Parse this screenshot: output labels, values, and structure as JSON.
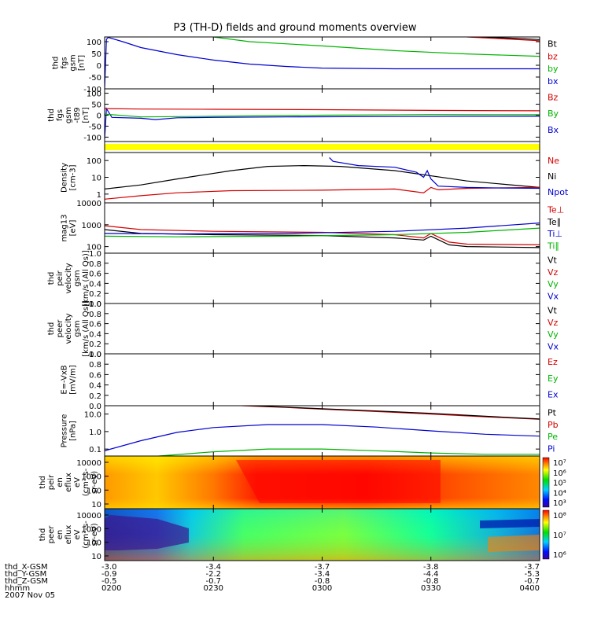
{
  "chart_data": {
    "type": "line",
    "title": "P3 (TH-D) fields and ground moments overview",
    "time_ticks": [
      "0200",
      "0230",
      "0300",
      "0330",
      "0400"
    ],
    "time_range": [
      0,
      120
    ],
    "footer": {
      "rows": [
        {
          "label": "thd_X-GSM",
          "values": [
            "-3.0",
            "-3.4",
            "-3.7",
            "-3.8",
            "-3.7"
          ]
        },
        {
          "label": "thd_Y-GSM",
          "values": [
            "-0.9",
            "-2.2",
            "-3.4",
            "-4.4",
            "-5.3"
          ]
        },
        {
          "label": "thd_Z-GSM",
          "values": [
            "-0.5",
            "-0.7",
            "-0.8",
            "-0.8",
            "-0.7"
          ]
        },
        {
          "label": "hhmm",
          "values": [
            "0200",
            "0230",
            "0300",
            "0330",
            "0400"
          ]
        }
      ],
      "date": "2007 Nov 05"
    },
    "panels": [
      {
        "id": "fgs",
        "kind": "line",
        "scale": "linear",
        "ylabel": [
          "thd",
          "fgs",
          "gsm",
          "[nT]"
        ],
        "yrange": [
          -100,
          120
        ],
        "ticks": [
          "100",
          "50",
          "0",
          "-50",
          "-100"
        ],
        "tick_values": [
          100,
          50,
          0,
          -50,
          -100
        ],
        "legend": [
          {
            "text": "Bt",
            "color": "#000000"
          },
          {
            "text": "bz",
            "color": "#d40000"
          },
          {
            "text": "by",
            "color": "#00b400"
          },
          {
            "text": "bx",
            "color": "#0000d0"
          }
        ],
        "series": [
          {
            "name": "bx",
            "color": "#0000d0",
            "x": [
              0,
              0.5,
              1,
              5,
              10,
              20,
              30,
              40,
              50,
              60,
              80,
              100,
              120
            ],
            "y": [
              -100,
              110,
              118,
              100,
              75,
              45,
              22,
              5,
              -5,
              -12,
              -15,
              -15,
              -15
            ]
          },
          {
            "name": "by",
            "color": "#00b400",
            "x": [
              30,
              40,
              60,
              80,
              100,
              120
            ],
            "y": [
              120,
              100,
              82,
              62,
              48,
              38
            ]
          },
          {
            "name": "bz",
            "color": "#d40000",
            "x": [
              100,
              110,
              120
            ],
            "y": [
              120,
              112,
              104
            ]
          },
          {
            "name": "Bt",
            "color": "#000000",
            "x": [
              104,
              112,
              120
            ],
            "y": [
              120,
              115,
              109
            ]
          }
        ]
      },
      {
        "id": "fgs_t89",
        "kind": "line",
        "scale": "linear",
        "ylabel": [
          "thd",
          "fgs",
          "gsm",
          "-t89",
          "[nT]"
        ],
        "yrange": [
          -120,
          120
        ],
        "ticks": [
          "100",
          "50",
          "0",
          "-50",
          "-100"
        ],
        "tick_values": [
          100,
          50,
          0,
          -50,
          -100
        ],
        "legend": [
          {
            "text": "Bz",
            "color": "#d40000"
          },
          {
            "text": "By",
            "color": "#00b400"
          },
          {
            "text": "Bx",
            "color": "#0000d0"
          }
        ],
        "series": [
          {
            "name": "Bx",
            "color": "#0000d0",
            "x": [
              0,
              0.5,
              2,
              10,
              14,
              20,
              30,
              50,
              80,
              100,
              120
            ],
            "y": [
              -110,
              30,
              -10,
              -14,
              -20,
              -12,
              -10,
              -8,
              -6,
              -5,
              -5
            ]
          },
          {
            "name": "By",
            "color": "#00b400",
            "x": [
              0,
              10,
              30,
              60,
              90,
              120
            ],
            "y": [
              5,
              -8,
              -5,
              0,
              3,
              2
            ]
          },
          {
            "name": "Bz",
            "color": "#d40000",
            "x": [
              0,
              10,
              30,
              60,
              90,
              120
            ],
            "y": [
              30,
              28,
              27,
              25,
              22,
              20
            ]
          }
        ]
      },
      {
        "id": "flag",
        "kind": "bar",
        "color": "#ffff00"
      },
      {
        "id": "density",
        "kind": "line",
        "scale": "log",
        "ylabel": [
          "Density",
          "[cm-3]"
        ],
        "ylabel_label": "[cm-3]",
        "yrange": [
          0.3,
          300
        ],
        "ticks": [
          "100",
          "10",
          "1"
        ],
        "tick_values": [
          100,
          10,
          1
        ],
        "legend": [
          {
            "text": "Ne",
            "color": "#d40000"
          },
          {
            "text": "Ni",
            "color": "#000000"
          },
          {
            "text": "Npot",
            "color": "#0000d0"
          }
        ],
        "series": [
          {
            "name": "Ni",
            "color": "#000000",
            "x": [
              0,
              10,
              20,
              35,
              45,
              55,
              65,
              80,
              100,
              120
            ],
            "y": [
              2,
              3.5,
              8,
              25,
              45,
              50,
              45,
              25,
              6,
              2.5
            ]
          },
          {
            "name": "Ne",
            "color": "#d40000",
            "x": [
              0,
              10,
              20,
              35,
              60,
              80,
              88,
              90,
              92,
              100,
              120
            ],
            "y": [
              0.5,
              0.8,
              1.2,
              1.6,
              1.7,
              2,
              1.2,
              2.5,
              1.8,
              2.2,
              2.5
            ]
          },
          {
            "name": "Npot",
            "color": "#0000d0",
            "x": [
              62,
              63,
              70,
              80,
              86,
              88,
              89,
              90,
              92,
              100,
              110,
              120
            ],
            "y": [
              150,
              90,
              50,
              40,
              20,
              10,
              25,
              8,
              3,
              2.5,
              2.3,
              2.2
            ]
          }
        ]
      },
      {
        "id": "temp",
        "kind": "line",
        "scale": "log",
        "ylabel": [
          "mag13",
          "[eV]"
        ],
        "yrange": [
          50,
          10000
        ],
        "ticks": [
          "10000",
          "1000",
          "100"
        ],
        "tick_values": [
          10000,
          1000,
          100
        ],
        "legend": [
          {
            "text": "Te⊥",
            "color": "#d40000"
          },
          {
            "text": "Te∥",
            "color": "#000000"
          },
          {
            "text": "Ti⊥",
            "color": "#0000d0"
          },
          {
            "text": "Ti∥",
            "color": "#00b400"
          }
        ],
        "series": [
          {
            "name": "Te∥",
            "color": "#000000",
            "x": [
              0,
              10,
              30,
              60,
              80,
              88,
              90,
              95,
              100,
              120
            ],
            "y": [
              600,
              400,
              350,
              320,
              250,
              200,
              300,
              120,
              100,
              90
            ]
          },
          {
            "name": "Te⊥",
            "color": "#d40000",
            "x": [
              0,
              10,
              30,
              60,
              80,
              88,
              90,
              95,
              100,
              120
            ],
            "y": [
              900,
              600,
              500,
              450,
              350,
              250,
              400,
              160,
              130,
              120
            ]
          },
          {
            "name": "Ti⊥",
            "color": "#0000d0",
            "x": [
              0,
              20,
              50,
              80,
              100,
              120
            ],
            "y": [
              400,
              380,
              400,
              500,
              700,
              1200
            ]
          },
          {
            "name": "Ti∥",
            "color": "#00b400",
            "x": [
              0,
              20,
              50,
              80,
              100,
              120
            ],
            "y": [
              300,
              280,
              300,
              350,
              450,
              700
            ]
          }
        ]
      },
      {
        "id": "ion_vel",
        "kind": "empty",
        "scale": "linear",
        "ylabel": [
          "thd",
          "peir",
          "velocity",
          "gsm",
          "[km/s (All Qs)]"
        ],
        "yrange": [
          0,
          1
        ],
        "ticks": [
          "1.0",
          "0.8",
          "0.6",
          "0.4",
          "0.2",
          "0.0"
        ],
        "tick_values": [
          1,
          0.8,
          0.6,
          0.4,
          0.2,
          0
        ],
        "legend": [
          {
            "text": "Vt",
            "color": "#000000"
          },
          {
            "text": "Vz",
            "color": "#d40000"
          },
          {
            "text": "Vy",
            "color": "#00b400"
          },
          {
            "text": "Vx",
            "color": "#0000d0"
          }
        ],
        "series": []
      },
      {
        "id": "ele_vel",
        "kind": "empty",
        "scale": "linear",
        "ylabel": [
          "thd",
          "peer",
          "velocity",
          "gsm",
          "[km/s (All Qs)]"
        ],
        "yrange": [
          0,
          1
        ],
        "ticks": [
          "1.0",
          "0.8",
          "0.6",
          "0.4",
          "0.2",
          "0.0"
        ],
        "tick_values": [
          1,
          0.8,
          0.6,
          0.4,
          0.2,
          0
        ],
        "legend": [
          {
            "text": "Vt",
            "color": "#000000"
          },
          {
            "text": "Vz",
            "color": "#d40000"
          },
          {
            "text": "Vy",
            "color": "#00b400"
          },
          {
            "text": "Vx",
            "color": "#0000d0"
          }
        ],
        "series": []
      },
      {
        "id": "efield",
        "kind": "empty",
        "scale": "linear",
        "ylabel": [
          "E=-VxB",
          "[mV/m]"
        ],
        "yrange": [
          0,
          1
        ],
        "ticks": [
          "1.0",
          "0.8",
          "0.6",
          "0.4",
          "0.2",
          "0.0"
        ],
        "tick_values": [
          1,
          0.8,
          0.6,
          0.4,
          0.2,
          0
        ],
        "legend": [
          {
            "text": "Ez",
            "color": "#d40000"
          },
          {
            "text": "Ey",
            "color": "#00b400"
          },
          {
            "text": "Ex",
            "color": "#0000d0"
          }
        ],
        "series": []
      },
      {
        "id": "pressure",
        "kind": "line",
        "scale": "log",
        "ylabel": [
          "Pressure",
          "[nPa]"
        ],
        "yrange": [
          0.04,
          30
        ],
        "ticks": [
          "10.0",
          "1.0",
          "0.1"
        ],
        "tick_values": [
          10,
          1,
          0.1
        ],
        "legend": [
          {
            "text": "Pt",
            "color": "#000000"
          },
          {
            "text": "Pb",
            "color": "#d40000"
          },
          {
            "text": "Pe",
            "color": "#00b400"
          },
          {
            "text": "Pi",
            "color": "#0000d0"
          }
        ],
        "series": [
          {
            "name": "Pi",
            "color": "#0000d0",
            "x": [
              0,
              10,
              20,
              30,
              45,
              60,
              75,
              90,
              105,
              120
            ],
            "y": [
              0.08,
              0.3,
              0.9,
              1.7,
              2.5,
              2.5,
              1.8,
              1.1,
              0.7,
              0.55
            ]
          },
          {
            "name": "Pe",
            "color": "#00b400",
            "x": [
              0,
              15,
              30,
              45,
              60,
              75,
              90,
              105,
              120
            ],
            "y": [
              0.02,
              0.04,
              0.07,
              0.1,
              0.1,
              0.08,
              0.06,
              0.05,
              0.05
            ]
          },
          {
            "name": "Pb",
            "color": "#d40000",
            "x": [
              38,
              50,
              60,
              75,
              90,
              105,
              120
            ],
            "y": [
              30,
              24,
              19,
              14,
              10,
              7,
              5
            ]
          },
          {
            "name": "Pt",
            "color": "#000000",
            "x": [
              40,
              50,
              60,
              75,
              90,
              105,
              120
            ],
            "y": [
              30,
              25,
              20,
              15,
              11,
              7.5,
              5.2
            ]
          }
        ]
      },
      {
        "id": "ion_spec",
        "kind": "spectrogram",
        "ylabel": [
          "thd",
          "peir",
          "en",
          "eflux",
          "eV",
          "(cm²-s-",
          "sr-eV)"
        ],
        "ticks": [
          "10000",
          "1000",
          "100",
          "10"
        ],
        "colorbar_ticks": [
          "10⁷",
          "10⁶",
          "10⁵",
          "10⁴",
          "10³"
        ]
      },
      {
        "id": "ele_spec",
        "kind": "spectrogram",
        "ylabel": [
          "thd",
          "peer",
          "en",
          "eflux",
          "eV",
          "(cm²-s-",
          "sr-eV)"
        ],
        "ticks": [
          "10000",
          "1000",
          "100",
          "10"
        ],
        "colorbar_ticks": [
          "10⁸",
          "10⁷",
          "10⁶"
        ]
      }
    ]
  }
}
